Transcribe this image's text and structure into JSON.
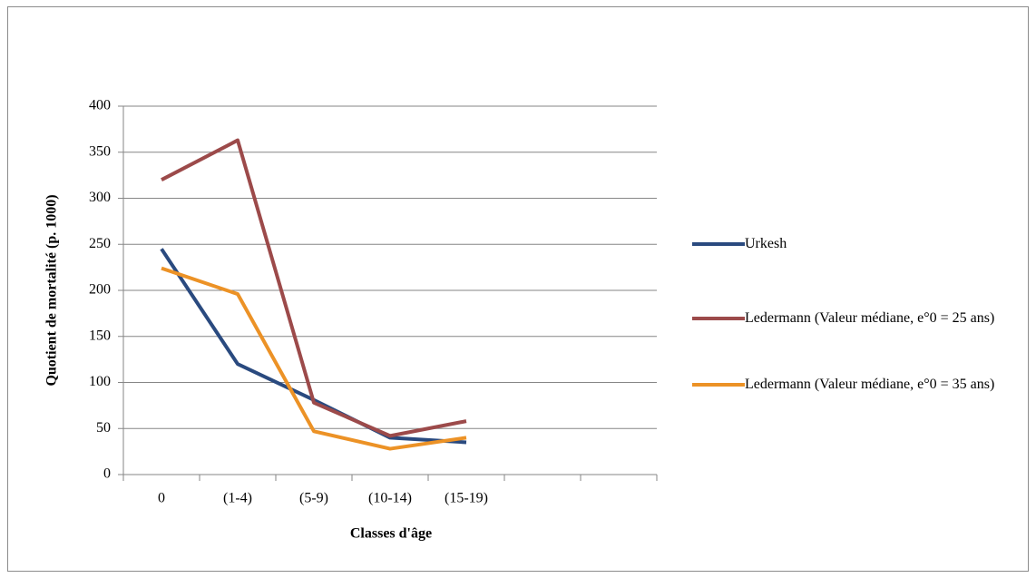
{
  "chart_data": {
    "type": "line",
    "x_label": "Classes d'âge",
    "y_label": "Quotient de mortalité (p. 1000)",
    "categories": [
      "0",
      "(1-4)",
      "(5-9)",
      "(10-14)",
      "(15-19)",
      null,
      null
    ],
    "series": [
      {
        "name": "Urkesh",
        "color": "#2a4a7f",
        "values": [
          245,
          120,
          81,
          40,
          35,
          null,
          null
        ]
      },
      {
        "name": "Ledermann (Valeur médiane, e°0 = 25 ans)",
        "color": "#9c4a4a",
        "values": [
          320,
          363,
          78,
          42,
          58,
          null,
          null
        ]
      },
      {
        "name": "Ledermann (Valeur médiane, e°0 = 35 ans)",
        "color": "#ec9226",
        "values": [
          224,
          196,
          47,
          28,
          40,
          null,
          null
        ]
      }
    ],
    "ylim": [
      0,
      400
    ],
    "yticks": [
      0,
      50,
      100,
      150,
      200,
      250,
      300,
      350,
      400
    ],
    "grid": true,
    "legend": "right"
  }
}
